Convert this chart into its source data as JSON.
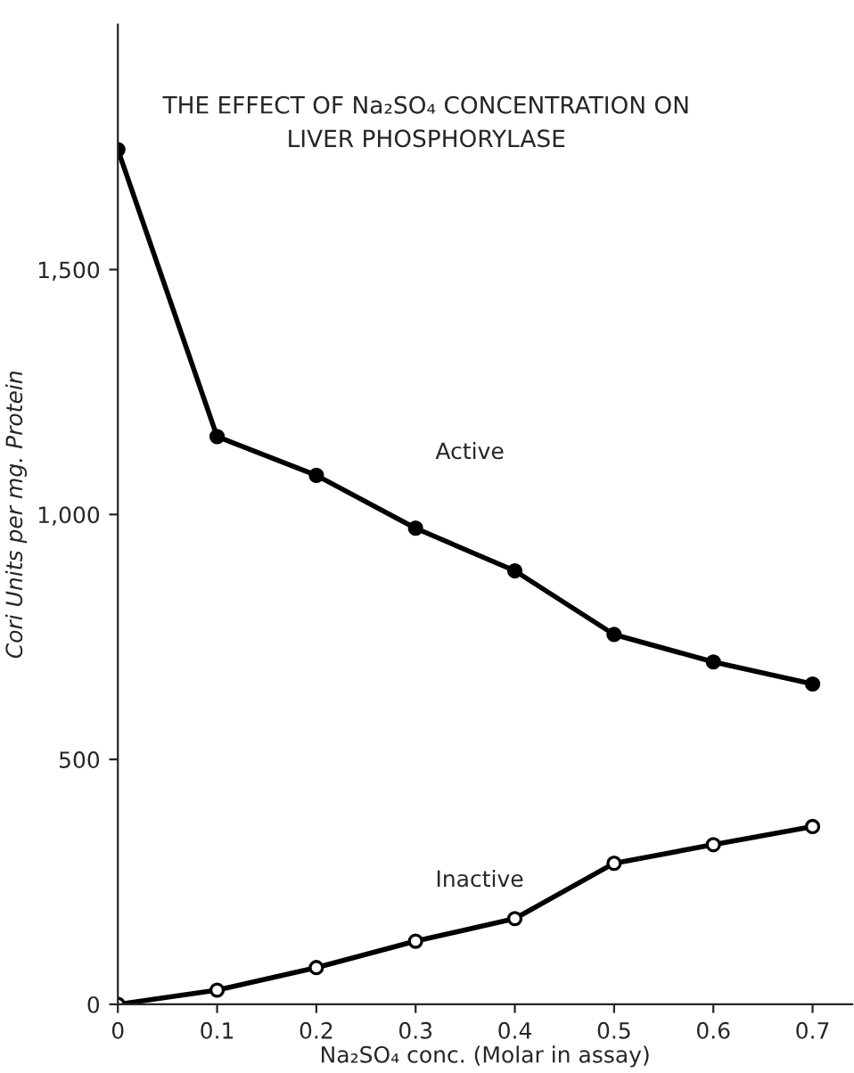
{
  "chart_data": {
    "type": "line",
    "title": "THE EFFECT OF Na₂SO₄ CONCENTRATION ON\nLIVER PHOSPHORYLASE",
    "xlabel": "Na₂SO₄ conc. (Molar in assay)",
    "ylabel": "Cori Units per mg. Protein",
    "x": [
      0,
      0.1,
      0.2,
      0.3,
      0.4,
      0.5,
      0.6,
      0.7
    ],
    "series": [
      {
        "name": "Active",
        "color": "#000000",
        "values": [
          1745,
          1159,
          1080,
          972,
          885,
          755,
          699,
          654
        ]
      },
      {
        "name": "Inactive",
        "color": "#000000",
        "values": [
          0,
          29,
          75,
          129,
          175,
          288,
          326,
          363
        ]
      }
    ],
    "xlim": [
      0,
      0.74
    ],
    "ylim": [
      0,
      2000
    ],
    "xticks": [
      0,
      0.1,
      0.2,
      0.3,
      0.4,
      0.5,
      0.6,
      0.7
    ],
    "yticks": [
      0,
      500,
      {
        "value": 1000,
        "label": "1,000"
      },
      {
        "value": 1500,
        "label": "1,500"
      }
    ],
    "marker": "circle",
    "line_style": "solid",
    "grid": false,
    "legend": false
  }
}
